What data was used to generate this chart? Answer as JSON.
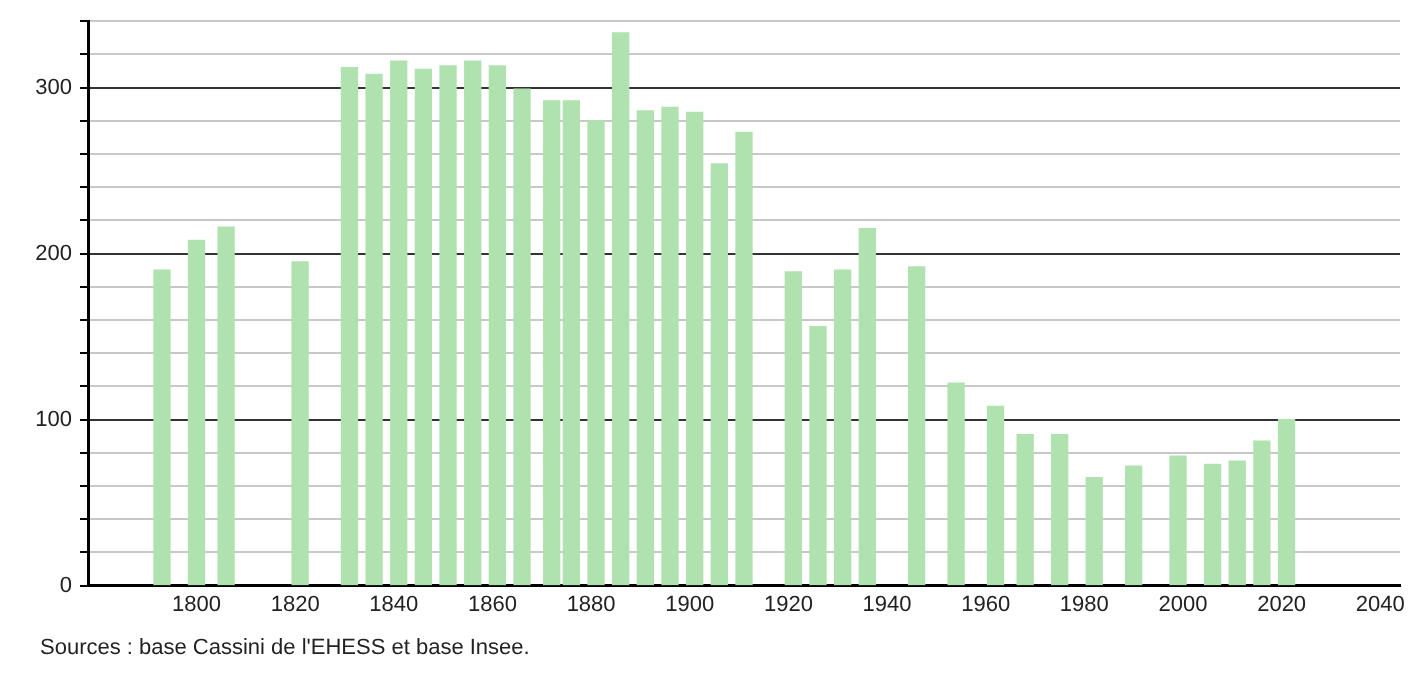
{
  "chart_data": {
    "type": "bar",
    "x": [
      1793,
      1800,
      1806,
      1821,
      1831,
      1836,
      1841,
      1846,
      1851,
      1856,
      1861,
      1866,
      1872,
      1876,
      1881,
      1886,
      1891,
      1896,
      1901,
      1906,
      1911,
      1921,
      1926,
      1931,
      1936,
      1946,
      1954,
      1962,
      1968,
      1975,
      1982,
      1990,
      1999,
      2006,
      2011,
      2016,
      2021
    ],
    "values": [
      190,
      208,
      216,
      195,
      312,
      308,
      316,
      311,
      313,
      316,
      313,
      299,
      292,
      292,
      280,
      333,
      286,
      288,
      285,
      254,
      273,
      189,
      156,
      190,
      215,
      192,
      122,
      108,
      91,
      91,
      65,
      72,
      78,
      73,
      75,
      87,
      100
    ],
    "color": "#b0e2b0",
    "xlim": [
      1778,
      2044
    ],
    "xticks": [
      1800,
      1820,
      1840,
      1860,
      1880,
      1900,
      1920,
      1940,
      1960,
      1980,
      2000,
      2020,
      2040
    ],
    "ylim": [
      0,
      340
    ],
    "yticks": [
      0,
      {
        "value": 20,
        "label": null
      },
      {
        "value": 40,
        "label": null
      },
      {
        "value": 60,
        "label": null
      },
      {
        "value": 80,
        "label": null
      },
      100,
      {
        "value": 120,
        "label": null
      },
      {
        "value": 140,
        "label": null
      },
      {
        "value": 160,
        "label": null
      },
      {
        "value": 180,
        "label": null
      },
      200,
      {
        "value": 220,
        "label": null
      },
      {
        "value": 240,
        "label": null
      },
      {
        "value": 260,
        "label": null
      },
      {
        "value": 280,
        "label": null
      },
      300,
      {
        "value": 320,
        "label": null
      },
      {
        "value": 340,
        "label": null
      }
    ],
    "grid": "y",
    "legend": false,
    "annotations": [
      "Sources : base Cassini de l'EHESS et base Insee."
    ]
  }
}
